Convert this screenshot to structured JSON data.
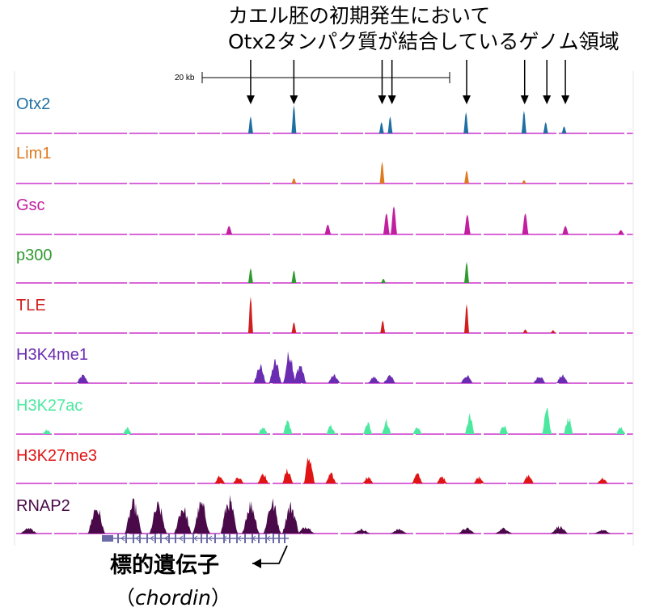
{
  "heading": {
    "line1": "カエル胚の初期発生において",
    "line2": "Otx2タンパク質が結合しているゲノム領域"
  },
  "scale_bar": {
    "label": "20 kb"
  },
  "gene": {
    "label": "標的遺伝子",
    "name_open": "（",
    "name": "chordin",
    "name_close": "）"
  },
  "colors": {
    "baseline": "#cc33cc",
    "Otx2": "#1f6fa3",
    "Lim1": "#e07a1f",
    "Gsc": "#c21fa0",
    "p300": "#2f9a2f",
    "TLE": "#d11f1f",
    "H3K4me1": "#6a2cb0",
    "H3K27ac": "#4de8a0",
    "H3K27me3": "#e01414",
    "RNAP2": "#4a0a4a",
    "gene_track": "#6a6aa8"
  },
  "chart_data": {
    "type": "area",
    "x_unit": "kb",
    "x_range": [
      0,
      100
    ],
    "arrow_positions_kb": [
      38.0,
      45.0,
      59.3,
      60.9,
      73.0,
      82.4,
      86.0,
      89.0
    ],
    "tracks": [
      {
        "name": "Otx2",
        "label_color": "#1f6fa3",
        "peaks": [
          [
            38.0,
            0.6
          ],
          [
            45.0,
            1.0
          ],
          [
            59.2,
            0.4
          ],
          [
            60.6,
            0.6
          ],
          [
            72.9,
            0.75
          ],
          [
            82.3,
            0.8
          ],
          [
            85.8,
            0.4
          ],
          [
            88.8,
            0.25
          ]
        ]
      },
      {
        "name": "Lim1",
        "label_color": "#e07a1f",
        "peaks": [
          [
            45.0,
            0.25
          ],
          [
            59.3,
            1.0
          ],
          [
            73.0,
            0.6
          ],
          [
            82.3,
            0.15
          ]
        ]
      },
      {
        "name": "Gsc",
        "label_color": "#c21fa0",
        "peaks": [
          [
            34.5,
            0.3
          ],
          [
            50.5,
            0.35
          ],
          [
            60.0,
            0.75
          ],
          [
            61.2,
            1.0
          ],
          [
            73.1,
            0.7
          ],
          [
            82.5,
            0.75
          ],
          [
            89.0,
            0.3
          ],
          [
            98.0,
            0.15
          ]
        ]
      },
      {
        "name": "p300",
        "label_color": "#2f9a2f",
        "peaks": [
          [
            38.0,
            0.7
          ],
          [
            45.0,
            0.6
          ],
          [
            59.5,
            0.2
          ],
          [
            73.0,
            1.0
          ]
        ]
      },
      {
        "name": "TLE",
        "label_color": "#d11f1f",
        "peaks": [
          [
            38.0,
            1.0
          ],
          [
            45.0,
            0.3
          ],
          [
            59.4,
            0.35
          ],
          [
            73.0,
            0.8
          ],
          [
            82.5,
            0.1
          ],
          [
            87.0,
            0.08
          ]
        ]
      },
      {
        "name": "H3K4me1",
        "label_color": "#6a2cb0",
        "peaks": [
          [
            10.8,
            0.25
          ],
          [
            39.5,
            0.55
          ],
          [
            42.0,
            0.7
          ],
          [
            44.3,
            1.0
          ],
          [
            46.0,
            0.6
          ],
          [
            51.5,
            0.25
          ],
          [
            58.0,
            0.2
          ],
          [
            60.5,
            0.25
          ],
          [
            73.0,
            0.25
          ],
          [
            84.8,
            0.25
          ],
          [
            88.5,
            0.25
          ]
        ]
      },
      {
        "name": "H3K27ac",
        "label_color": "#4de8a0",
        "peaks": [
          [
            5.0,
            0.2
          ],
          [
            18.0,
            0.25
          ],
          [
            40.0,
            0.3
          ],
          [
            44.0,
            0.55
          ],
          [
            51.0,
            0.35
          ],
          [
            57.0,
            0.45
          ],
          [
            60.0,
            0.55
          ],
          [
            65.0,
            0.3
          ],
          [
            73.5,
            0.75
          ],
          [
            79.0,
            0.4
          ],
          [
            86.0,
            0.95
          ],
          [
            89.5,
            0.7
          ],
          [
            98.0,
            0.3
          ]
        ]
      },
      {
        "name": "H3K27me3",
        "label_color": "#e01414",
        "peaks": [
          [
            33.0,
            0.3
          ],
          [
            36.0,
            0.25
          ],
          [
            40.0,
            0.4
          ],
          [
            44.0,
            0.5
          ],
          [
            47.5,
            1.0
          ],
          [
            51.0,
            0.35
          ],
          [
            57.0,
            0.25
          ],
          [
            65.0,
            0.35
          ],
          [
            69.0,
            0.25
          ],
          [
            75.0,
            0.25
          ],
          [
            83.0,
            0.3
          ],
          [
            95.0,
            0.2
          ]
        ]
      },
      {
        "name": "RNAP2",
        "label_color": "#4a0a4a",
        "peaks": [
          [
            2.0,
            0.15
          ],
          [
            13.0,
            0.75
          ],
          [
            19.0,
            0.85
          ],
          [
            23.0,
            0.8
          ],
          [
            27.0,
            0.75
          ],
          [
            30.0,
            0.85
          ],
          [
            34.5,
            0.95
          ],
          [
            38.0,
            0.85
          ],
          [
            41.5,
            0.9
          ],
          [
            44.5,
            0.8
          ],
          [
            47.0,
            0.2
          ],
          [
            56.0,
            0.12
          ],
          [
            62.0,
            0.12
          ],
          [
            73.0,
            0.15
          ],
          [
            79.0,
            0.15
          ],
          [
            88.0,
            0.2
          ],
          [
            95.0,
            0.1
          ]
        ]
      }
    ]
  }
}
